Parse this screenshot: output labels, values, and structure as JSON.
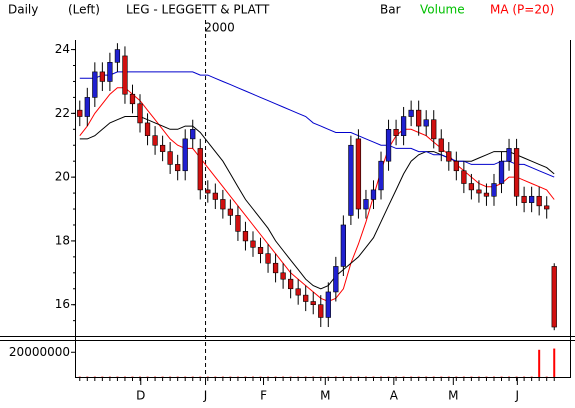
{
  "chart_data": {
    "type": "candlestick",
    "period": "Daily",
    "axis_side": "(Left)",
    "title": "LEG - LEGGETT & PLATT",
    "legend": {
      "bar": "Bar",
      "volume": "Volume"
    },
    "volume_legend_color": "#00c000",
    "year_marker": {
      "x": 16.7,
      "label": "2000"
    },
    "up_color": "#2020d0",
    "down_color": "#d01010",
    "xlim": [
      -0.5,
      63.5
    ],
    "xticks": [
      {
        "value": 8.1,
        "label": "D"
      },
      {
        "value": 16.7,
        "label": "J"
      },
      {
        "value": 24.4,
        "label": "F"
      },
      {
        "value": 32.6,
        "label": "M"
      },
      {
        "value": 41.7,
        "label": "A"
      },
      {
        "value": 49.6,
        "label": "M"
      },
      {
        "value": 58.1,
        "label": "J"
      }
    ],
    "ylim": [
      15.05,
      24.3
    ],
    "yticks": [
      16,
      18,
      20,
      22,
      24
    ],
    "open": [
      22.1,
      21.9,
      22.5,
      23.3,
      23.0,
      23.6,
      23.8,
      22.6,
      22.3,
      21.7,
      21.3,
      21.0,
      20.8,
      20.4,
      20.2,
      21.2,
      20.9,
      19.6,
      19.5,
      19.3,
      19.0,
      18.8,
      18.3,
      18.0,
      17.8,
      17.6,
      17.3,
      17.0,
      16.8,
      16.5,
      16.3,
      16.1,
      16.0,
      15.6,
      16.4,
      17.2,
      18.8,
      21.2,
      19.0,
      19.3,
      19.6,
      20.5,
      21.5,
      21.3,
      21.9,
      22.1,
      21.6,
      21.8,
      21.2,
      20.8,
      20.5,
      20.2,
      19.8,
      19.6,
      19.5,
      19.4,
      19.8,
      20.5,
      20.9,
      19.4,
      19.2,
      19.4,
      19.1,
      17.2
    ],
    "high": [
      22.4,
      22.8,
      23.6,
      23.6,
      23.9,
      24.2,
      24.1,
      22.9,
      22.6,
      22.0,
      21.6,
      21.3,
      21.1,
      20.7,
      21.5,
      21.8,
      21.2,
      19.9,
      19.8,
      19.6,
      19.3,
      19.1,
      18.6,
      18.3,
      18.1,
      17.9,
      17.6,
      17.3,
      17.1,
      16.8,
      16.6,
      16.4,
      16.3,
      16.7,
      17.5,
      18.8,
      21.3,
      21.5,
      19.6,
      19.9,
      20.8,
      21.8,
      21.8,
      22.2,
      22.4,
      22.4,
      22.1,
      22.1,
      21.5,
      21.1,
      20.8,
      20.5,
      20.1,
      19.9,
      19.8,
      20.1,
      20.8,
      21.2,
      21.2,
      19.7,
      19.7,
      19.7,
      19.4,
      17.3
    ],
    "low": [
      21.6,
      21.6,
      22.2,
      22.7,
      22.7,
      23.3,
      22.3,
      22.0,
      21.4,
      21.0,
      20.7,
      20.5,
      20.1,
      19.9,
      19.9,
      20.9,
      19.3,
      19.2,
      19.0,
      18.7,
      18.5,
      18.0,
      17.7,
      17.5,
      17.3,
      17.0,
      16.7,
      16.5,
      16.2,
      16.0,
      15.8,
      15.7,
      15.3,
      15.3,
      16.1,
      16.9,
      18.5,
      18.7,
      18.7,
      19.0,
      19.3,
      20.2,
      21.0,
      21.0,
      21.6,
      21.3,
      21.3,
      20.9,
      20.5,
      20.2,
      19.9,
      19.5,
      19.3,
      19.2,
      19.1,
      19.1,
      19.5,
      20.2,
      19.1,
      18.9,
      18.9,
      18.8,
      18.7,
      15.2
    ],
    "close": [
      21.9,
      22.5,
      23.3,
      23.0,
      23.6,
      24.0,
      22.6,
      22.3,
      21.7,
      21.3,
      21.0,
      20.8,
      20.4,
      20.2,
      21.2,
      21.5,
      19.6,
      19.5,
      19.3,
      19.0,
      18.8,
      18.3,
      18.0,
      17.8,
      17.6,
      17.3,
      17.0,
      16.8,
      16.5,
      16.3,
      16.1,
      16.0,
      15.6,
      16.4,
      17.2,
      18.5,
      21.0,
      19.0,
      19.3,
      19.6,
      20.5,
      21.5,
      21.3,
      21.9,
      22.1,
      21.6,
      21.8,
      21.2,
      20.8,
      20.5,
      20.2,
      19.8,
      19.6,
      19.5,
      19.4,
      19.8,
      20.5,
      20.9,
      19.4,
      19.2,
      19.4,
      19.1,
      19.0,
      15.3
    ],
    "series": [
      {
        "name": "MA (P=20)",
        "color": "#ff0000",
        "values": [
          21.3,
          21.6,
          22.0,
          22.3,
          22.6,
          22.8,
          22.8,
          22.6,
          22.4,
          22.1,
          21.8,
          21.5,
          21.2,
          21.0,
          20.9,
          20.9,
          20.6,
          20.3,
          20.0,
          19.7,
          19.4,
          19.1,
          18.8,
          18.5,
          18.2,
          17.9,
          17.6,
          17.3,
          17.0,
          16.8,
          16.6,
          16.4,
          16.2,
          16.1,
          16.2,
          16.5,
          17.3,
          17.9,
          18.6,
          19.4,
          20.2,
          20.9,
          21.3,
          21.5,
          21.5,
          21.4,
          21.3,
          21.1,
          20.9,
          20.7,
          20.4,
          20.2,
          20.0,
          19.8,
          19.7,
          19.7,
          19.8,
          20.0,
          20.0,
          19.9,
          19.8,
          19.7,
          19.6,
          19.3
        ]
      },
      {
        "color": "#000000",
        "values": [
          21.2,
          21.2,
          21.3,
          21.5,
          21.7,
          21.8,
          21.9,
          21.9,
          21.9,
          21.8,
          21.7,
          21.6,
          21.5,
          21.5,
          21.6,
          21.6,
          21.4,
          21.1,
          20.8,
          20.5,
          20.1,
          19.7,
          19.3,
          19.0,
          18.7,
          18.4,
          18.0,
          17.7,
          17.4,
          17.1,
          16.8,
          16.6,
          16.5,
          16.6,
          16.9,
          17.1,
          17.3,
          17.5,
          17.8,
          18.1,
          18.6,
          19.1,
          19.6,
          20.1,
          20.5,
          20.7,
          20.8,
          20.8,
          20.7,
          20.6,
          20.5,
          20.5,
          20.5,
          20.6,
          20.7,
          20.8,
          20.8,
          20.8,
          20.7,
          20.6,
          20.5,
          20.4,
          20.3,
          20.1
        ]
      },
      {
        "color": "#0000cc",
        "values": [
          23.1,
          23.1,
          23.1,
          23.2,
          23.2,
          23.3,
          23.3,
          23.3,
          23.3,
          23.3,
          23.3,
          23.3,
          23.3,
          23.3,
          23.3,
          23.3,
          23.2,
          23.2,
          23.1,
          23.0,
          22.9,
          22.8,
          22.7,
          22.6,
          22.5,
          22.4,
          22.3,
          22.2,
          22.1,
          22.0,
          21.9,
          21.7,
          21.6,
          21.5,
          21.4,
          21.4,
          21.4,
          21.3,
          21.2,
          21.1,
          21.0,
          21.0,
          20.9,
          20.9,
          20.9,
          20.8,
          20.8,
          20.7,
          20.7,
          20.6,
          20.5,
          20.5,
          20.4,
          20.4,
          20.4,
          20.4,
          20.5,
          20.5,
          20.4,
          20.4,
          20.3,
          20.2,
          20.1,
          20.0
        ]
      }
    ],
    "volume": {
      "color": "#ff0000",
      "ylim": [
        0,
        28300000
      ],
      "yticks": [
        20000000
      ],
      "values": [
        300000,
        300000,
        300000,
        300000,
        300000,
        300000,
        300000,
        300000,
        300000,
        300000,
        300000,
        300000,
        300000,
        300000,
        300000,
        300000,
        300000,
        300000,
        300000,
        300000,
        300000,
        300000,
        300000,
        300000,
        300000,
        300000,
        300000,
        300000,
        300000,
        300000,
        300000,
        300000,
        300000,
        300000,
        300000,
        300000,
        300000,
        300000,
        300000,
        300000,
        300000,
        300000,
        300000,
        300000,
        300000,
        300000,
        300000,
        300000,
        300000,
        300000,
        300000,
        300000,
        300000,
        300000,
        300000,
        300000,
        300000,
        300000,
        300000,
        300000,
        300000,
        22000000,
        300000,
        23000000
      ]
    }
  }
}
